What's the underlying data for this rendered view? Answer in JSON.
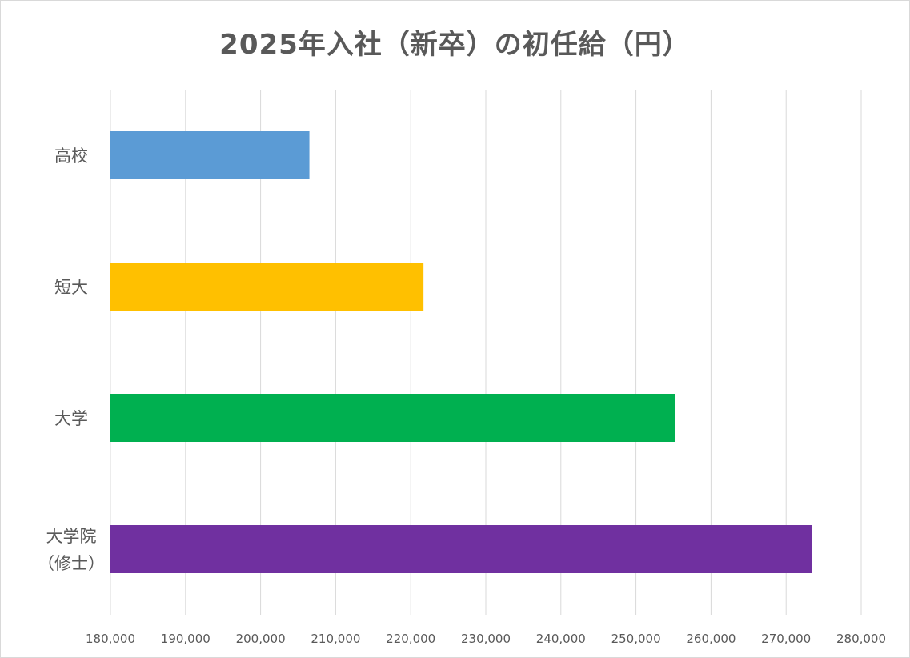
{
  "chart_data": {
    "type": "bar",
    "orientation": "horizontal",
    "title": "2025年入社（新卒）の初任給（円）",
    "xlabel": "",
    "ylabel": "",
    "xlim": [
      180000,
      280000
    ],
    "x_ticks": [
      180000,
      190000,
      200000,
      210000,
      220000,
      230000,
      240000,
      250000,
      260000,
      270000,
      280000
    ],
    "x_tick_labels": [
      "180,000",
      "190,000",
      "200,000",
      "210,000",
      "220,000",
      "230,000",
      "240,000",
      "250,000",
      "260,000",
      "270,000",
      "280,000"
    ],
    "grid": "vertical",
    "legend": "none",
    "categories": [
      {
        "label_lines": [
          "高校"
        ],
        "value": 206500,
        "color": "#5b9bd5"
      },
      {
        "label_lines": [
          "短大"
        ],
        "value": 221700,
        "color": "#ffc000"
      },
      {
        "label_lines": [
          "大学"
        ],
        "value": 255200,
        "color": "#00b050"
      },
      {
        "label_lines": [
          "大学院",
          "（修士）"
        ],
        "value": 273400,
        "color": "#7030a0"
      }
    ]
  }
}
